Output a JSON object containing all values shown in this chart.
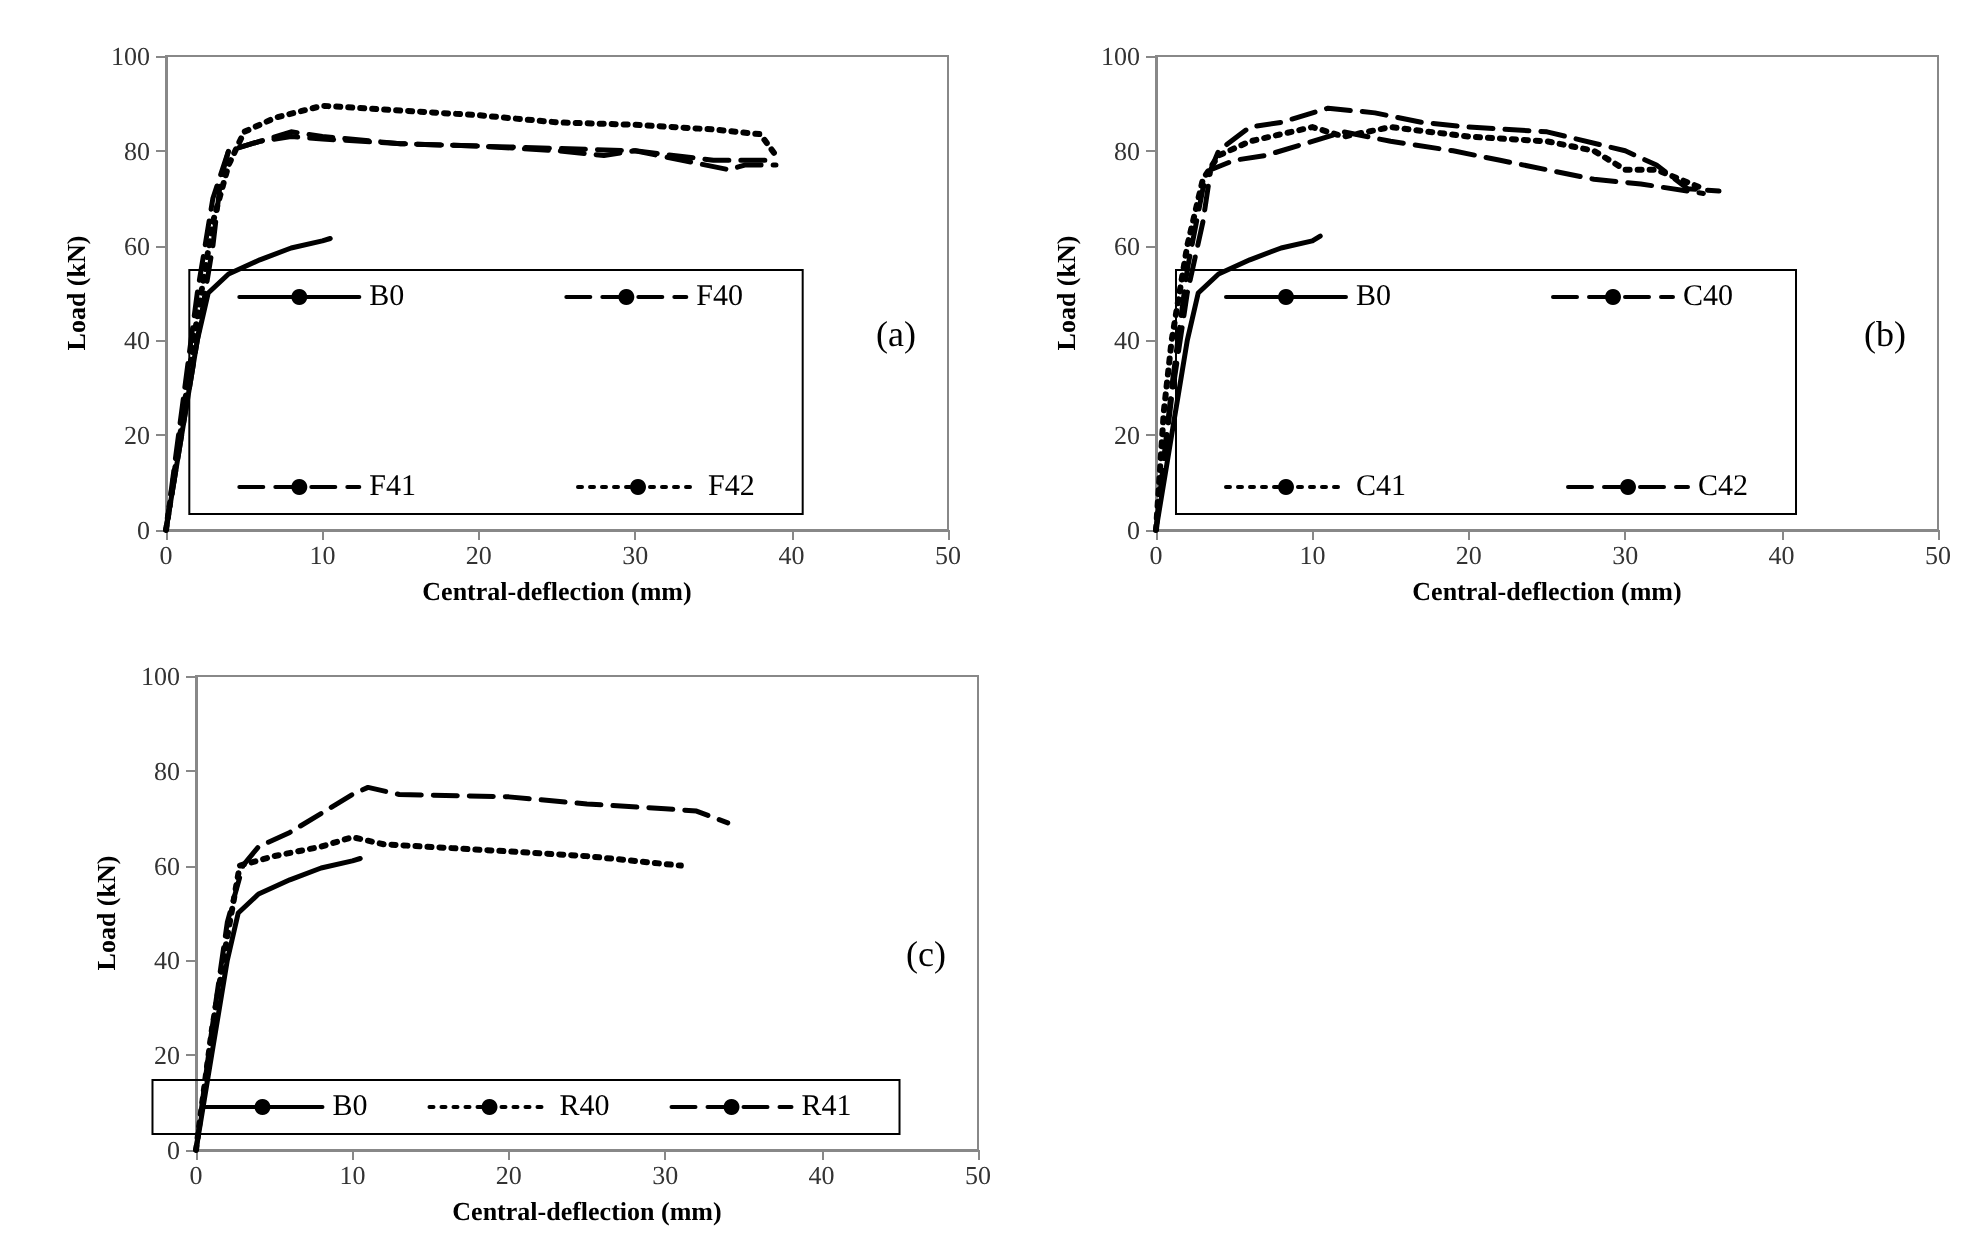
{
  "chart_data": [
    {
      "type": "line",
      "xlabel": "Central-deflection (mm)",
      "ylabel": "Load (kN)",
      "xlim": [
        0,
        50
      ],
      "xticks": [
        0,
        10,
        20,
        30,
        40,
        50
      ],
      "ylim": [
        0,
        100
      ],
      "yticks": [
        0,
        20,
        40,
        60,
        80,
        100
      ],
      "legend": "bottom",
      "annotations": [
        "(a)"
      ],
      "series": [
        {
          "name": "B0",
          "color": "#000000",
          "line_style": "solid",
          "x": [
            0,
            1,
            2,
            2.7,
            4,
            6,
            8,
            10,
            10.5
          ],
          "values": [
            0,
            20,
            40,
            50,
            54,
            57,
            59.5,
            61,
            61.5
          ]
        },
        {
          "name": "F40",
          "color": "#000000",
          "line_style": "dashed",
          "x": [
            0,
            1.5,
            3,
            3.5,
            4,
            6,
            8,
            10,
            15,
            20,
            25,
            28,
            30,
            33,
            36,
            37,
            39
          ],
          "values": [
            0,
            30,
            60,
            74,
            80,
            82,
            84,
            83,
            81.5,
            81,
            80,
            79,
            80,
            78,
            76,
            77,
            77
          ]
        },
        {
          "name": "F41",
          "color": "#000000",
          "line_style": "dashed",
          "x": [
            0,
            1,
            2,
            3,
            4,
            6,
            8,
            10,
            15,
            20,
            25,
            30,
            35,
            39
          ],
          "values": [
            0,
            25,
            50,
            70,
            80,
            82,
            83,
            82.5,
            81.5,
            81,
            80.5,
            80,
            78,
            78
          ]
        },
        {
          "name": "F42",
          "color": "#000000",
          "line_style": "dotted",
          "x": [
            0,
            1,
            2,
            3,
            4,
            5,
            7,
            10,
            15,
            20,
            25,
            30,
            35,
            38,
            39
          ],
          "values": [
            0,
            22,
            45,
            65,
            77,
            84,
            87,
            89.5,
            88.5,
            87.5,
            86,
            85.5,
            84.5,
            83.5,
            79
          ]
        }
      ]
    },
    {
      "type": "line",
      "xlabel": "Central-deflection (mm)",
      "ylabel": "Load (kN)",
      "xlim": [
        0,
        50
      ],
      "xticks": [
        0,
        10,
        20,
        30,
        40,
        50
      ],
      "ylim": [
        0,
        100
      ],
      "yticks": [
        0,
        20,
        40,
        60,
        80,
        100
      ],
      "legend": "bottom",
      "annotations": [
        "(b)"
      ],
      "series": [
        {
          "name": "B0",
          "color": "#000000",
          "line_style": "solid",
          "x": [
            0,
            1,
            2,
            2.7,
            4,
            6,
            8,
            10,
            10.5
          ],
          "values": [
            0,
            20,
            40,
            50,
            54,
            57,
            59.5,
            61,
            62
          ]
        },
        {
          "name": "C40",
          "color": "#000000",
          "line_style": "dashed",
          "x": [
            0,
            1,
            2,
            3,
            3.5,
            5,
            7,
            10,
            12,
            15,
            19,
            22,
            25,
            28,
            31,
            35
          ],
          "values": [
            0,
            28,
            50,
            65,
            76,
            78,
            79,
            82,
            84,
            82,
            80,
            78,
            76,
            74,
            73,
            71
          ]
        },
        {
          "name": "C41",
          "color": "#000000",
          "line_style": "dotted",
          "x": [
            0,
            0.5,
            1,
            2,
            3,
            4,
            6,
            10,
            12,
            15,
            20,
            25,
            28,
            30,
            32,
            35
          ],
          "values": [
            0,
            25,
            40,
            60,
            74,
            79,
            82,
            85,
            83,
            85,
            83,
            82,
            80,
            76,
            76,
            72
          ]
        },
        {
          "name": "C42",
          "color": "#000000",
          "line_style": "dashed",
          "x": [
            0,
            1,
            2,
            3,
            4,
            6,
            8,
            11,
            14,
            17,
            20,
            25,
            30,
            32,
            34,
            36
          ],
          "values": [
            0,
            30,
            55,
            72,
            80,
            85,
            86,
            89,
            88,
            86,
            85,
            84,
            80,
            77,
            72,
            71.5
          ]
        }
      ]
    },
    {
      "type": "line",
      "xlabel": "Central-deflection (mm)",
      "ylabel": "Load (kN)",
      "xlim": [
        0,
        50
      ],
      "xticks": [
        0,
        10,
        20,
        30,
        40,
        50
      ],
      "ylim": [
        0,
        100
      ],
      "yticks": [
        0,
        20,
        40,
        60,
        80,
        100
      ],
      "legend": "bottom",
      "annotations": [
        "(c)"
      ],
      "series": [
        {
          "name": "B0",
          "color": "#000000",
          "line_style": "solid",
          "x": [
            0,
            1,
            2,
            2.7,
            4,
            6,
            8,
            10,
            10.5
          ],
          "values": [
            0,
            20,
            40,
            50,
            54,
            57,
            59.5,
            61,
            61.5
          ]
        },
        {
          "name": "R40",
          "color": "#000000",
          "line_style": "dotted",
          "x": [
            0,
            1,
            2,
            2.8,
            5,
            8,
            10,
            12,
            20,
            25,
            31
          ],
          "values": [
            0,
            25,
            45,
            60,
            62,
            64,
            66,
            64.5,
            63,
            62,
            60
          ]
        },
        {
          "name": "R41",
          "color": "#000000",
          "line_style": "dashed",
          "x": [
            0,
            1,
            2,
            3,
            4,
            6,
            8,
            10,
            11,
            13,
            20,
            25,
            30,
            32,
            34
          ],
          "values": [
            0,
            25,
            48,
            60,
            64,
            67,
            71,
            75,
            76.5,
            75,
            74.5,
            73,
            72,
            71.5,
            69
          ]
        }
      ]
    }
  ]
}
